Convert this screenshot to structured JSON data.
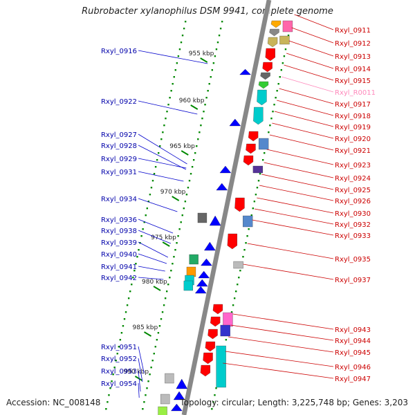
{
  "title": "Rubrobacter xylanophilus DSM 9941, complete genome",
  "footer": {
    "accession": "Accession: NC_008148",
    "topology": "Topology: circular; Length: 3,225,748 bp; Genes: 3,203"
  },
  "scale_ticks": [
    "955 kbp",
    "960 kbp",
    "965 kbp",
    "970 kbp",
    "975 kbp",
    "980 kbp",
    "985 kbp",
    "990 kbp"
  ],
  "left_labels": [
    "Rxyl_0916",
    "Rxyl_0922",
    "Rxyl_0927",
    "Rxyl_0928",
    "Rxyl_0929",
    "Rxyl_0931",
    "Rxyl_0934",
    "Rxyl_0936",
    "Rxyl_0938",
    "Rxyl_0939",
    "Rxyl_0940",
    "Rxyl_0941",
    "Rxyl_0942",
    "Rxyl_0951",
    "Rxyl_0952",
    "Rxyl_0953",
    "Rxyl_0954"
  ],
  "right_labels": [
    "Rxyl_0911",
    "Rxyl_0912",
    "Rxyl_0913",
    "Rxyl_0914",
    "Rxyl_0915",
    "Rxyl_R0011",
    "Rxyl_0917",
    "Rxyl_0918",
    "Rxyl_0919",
    "Rxyl_0920",
    "Rxyl_0921",
    "Rxyl_0923",
    "Rxyl_0924",
    "Rxyl_0925",
    "Rxyl_0926",
    "Rxyl_0930",
    "Rxyl_0932",
    "Rxyl_0933",
    "Rxyl_0935",
    "Rxyl_0937",
    "Rxyl_0943",
    "Rxyl_0944",
    "Rxyl_0945",
    "Rxyl_0946",
    "Rxyl_0947"
  ],
  "colors": {
    "forward_label": "#cc0000",
    "reverse_label": "#0000aa",
    "rna_label": "#ff88bb",
    "forward_gene": "#ff0000",
    "reverse_gene": "#0000ff",
    "backbone": "#888888",
    "tick": "#008800"
  }
}
